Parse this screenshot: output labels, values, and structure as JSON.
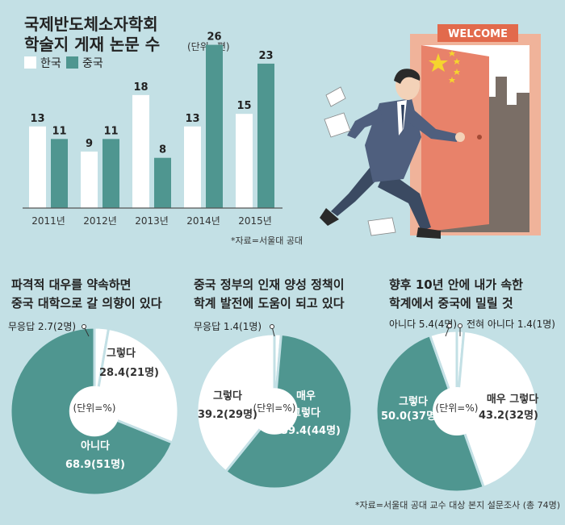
{
  "bar_section": {
    "title_line1": "국제반도체소자학회",
    "title_line2": "학술지 게재 논문 수",
    "unit": "(단위=편)",
    "source": "*자료=서울대 공대"
  },
  "illustration": {
    "sign": "WELCOME"
  },
  "pie_section": {
    "center_label": "(단위=%)",
    "source": "*자료=서울대 공대 교수 대상 본지 설문조사 (총 74명)"
  },
  "colors": {
    "background": "#c3e0e5",
    "korea": "#ffffff",
    "china": "#4f9690",
    "axis": "#555555"
  },
  "chart_data": [
    {
      "type": "bar",
      "title": "국제반도체소자학회 학술지 게재 논문 수",
      "unit": "(단위=편)",
      "categories": [
        "2011년",
        "2012년",
        "2013년",
        "2014년",
        "2015년"
      ],
      "series": [
        {
          "name": "한국",
          "values": [
            13,
            9,
            18,
            13,
            15
          ]
        },
        {
          "name": "중국",
          "values": [
            11,
            11,
            8,
            26,
            23
          ]
        }
      ],
      "ylim": [
        0,
        28
      ],
      "grid": false,
      "legend": "top-left"
    },
    {
      "type": "pie",
      "title_lines": [
        "파격적 대우를 약속하면",
        "중국 대학으로 갈 의향이 있다"
      ],
      "slices": [
        {
          "label": "무응답",
          "value": 2.7,
          "count": "2명",
          "text": "무응답 2.7(2명)"
        },
        {
          "label": "그렇다",
          "value": 28.4,
          "count": "21명",
          "text": "28.4(21명)"
        },
        {
          "label": "아니다",
          "value": 68.9,
          "count": "51명",
          "text": "68.9(51명)"
        }
      ]
    },
    {
      "type": "pie",
      "title_lines": [
        "중국 정부의 인재 양성 정책이",
        "학계 발전에 도움이 되고 있다"
      ],
      "slices": [
        {
          "label": "무응답",
          "value": 1.4,
          "count": "1명",
          "text": "무응답 1.4(1명)"
        },
        {
          "label": "매우 그렇다",
          "value": 59.4,
          "count": "44명",
          "text": "59.4(44명)"
        },
        {
          "label": "그렇다",
          "value": 39.2,
          "count": "29명",
          "text": "39.2(29명)"
        }
      ]
    },
    {
      "type": "pie",
      "title_lines": [
        "향후 10년 안에 내가 속한",
        "학계에서 중국에 밀릴 것"
      ],
      "slices": [
        {
          "label": "전혀 아니다",
          "value": 1.4,
          "count": "1명",
          "text": "전혀 아니다 1.4(1명)"
        },
        {
          "label": "매우 그렇다",
          "value": 43.2,
          "count": "32명",
          "text": "43.2(32명)"
        },
        {
          "label": "그렇다",
          "value": 50.0,
          "count": "37명",
          "text": "50.0(37명)"
        },
        {
          "label": "아니다",
          "value": 5.4,
          "count": "4명",
          "text": "아니다 5.4(4명)"
        }
      ]
    }
  ]
}
